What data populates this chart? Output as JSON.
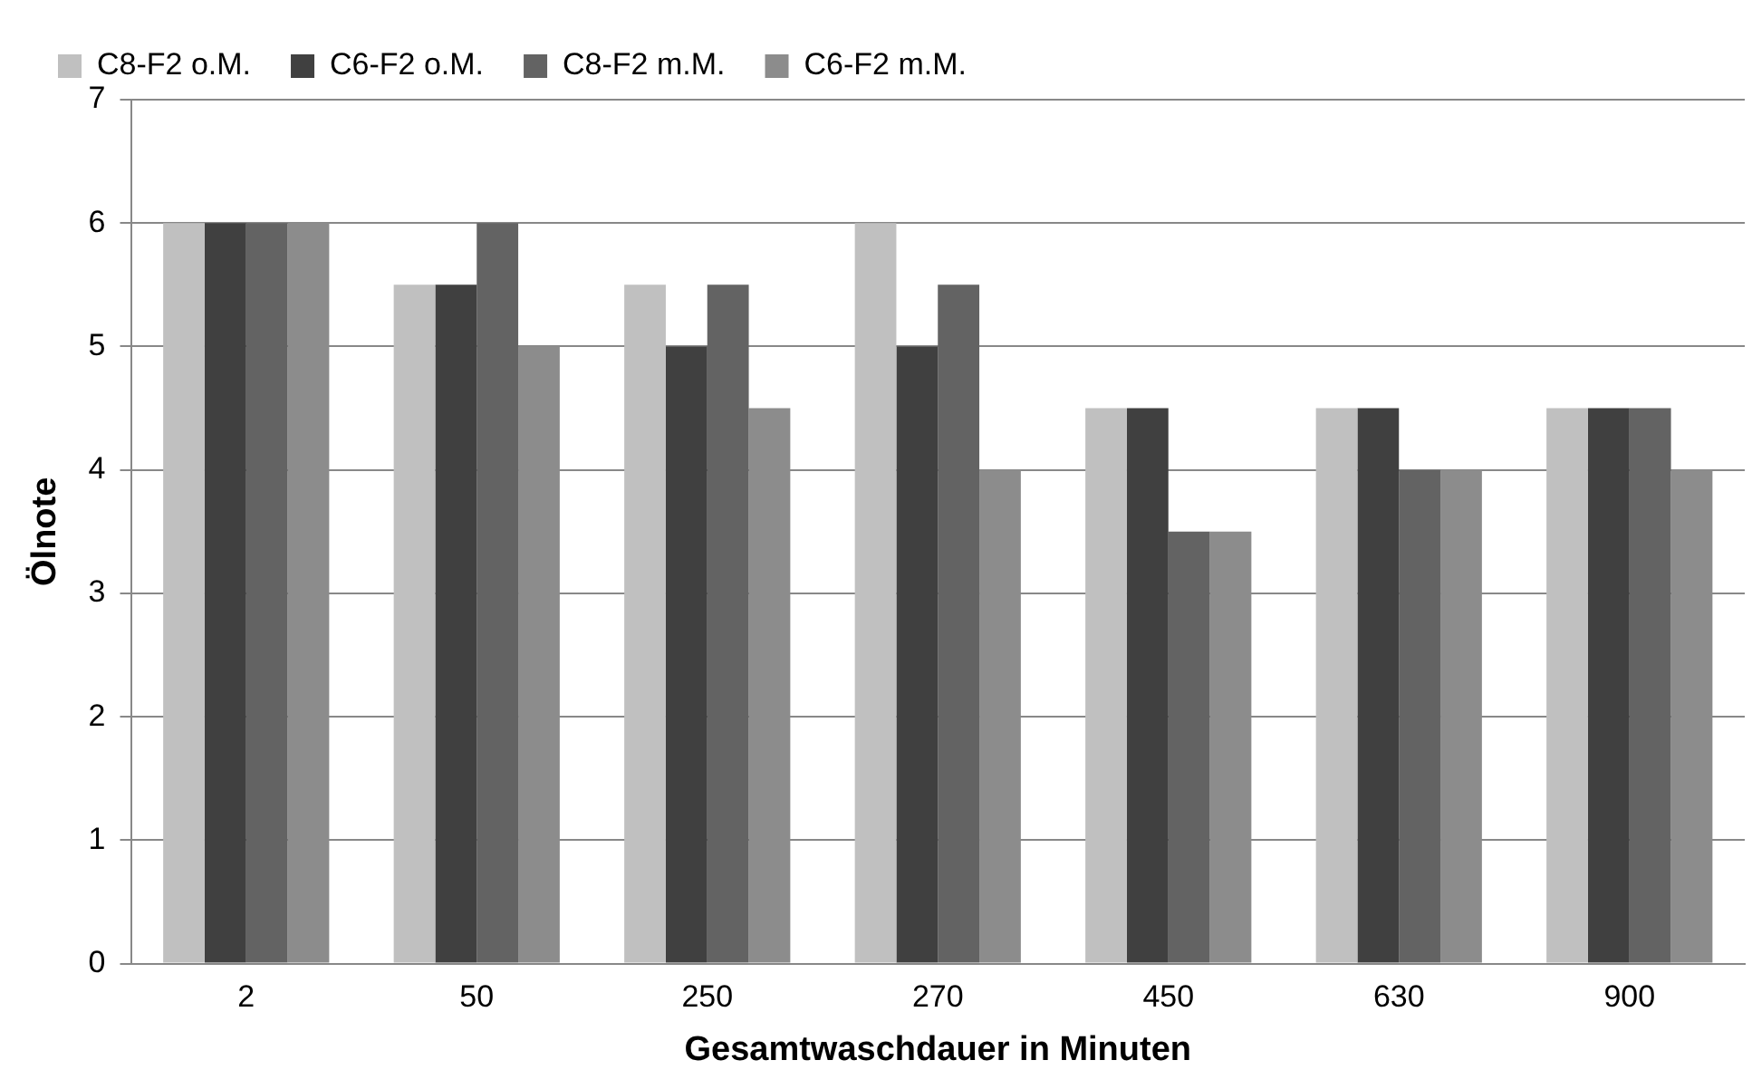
{
  "chart_data": {
    "type": "bar",
    "xlabel": "Gesamtwaschdauer in Minuten",
    "ylabel": "Ölnote",
    "categories": [
      "2",
      "50",
      "250",
      "270",
      "450",
      "630",
      "900"
    ],
    "series": [
      {
        "name": "C8-F2 o.M.",
        "color": "#c0c0c0",
        "values": [
          6,
          5.5,
          5.5,
          6,
          4.5,
          4.5,
          4.5
        ]
      },
      {
        "name": "C6-F2 o.M.",
        "color": "#404040",
        "values": [
          6,
          5.5,
          5,
          5,
          4.5,
          4.5,
          4.5
        ]
      },
      {
        "name": "C8-F2 m.M.",
        "color": "#636363",
        "values": [
          6,
          6,
          5.5,
          5.5,
          3.5,
          4,
          4.5
        ]
      },
      {
        "name": "C6-F2 m.M.",
        "color": "#8c8c8c",
        "values": [
          6,
          5,
          4.5,
          4,
          3.5,
          4,
          4
        ]
      }
    ],
    "ylim": [
      0,
      7
    ],
    "yticks": [
      0,
      1,
      2,
      3,
      4,
      5,
      6,
      7
    ],
    "grid": "y",
    "legend": "top left"
  }
}
